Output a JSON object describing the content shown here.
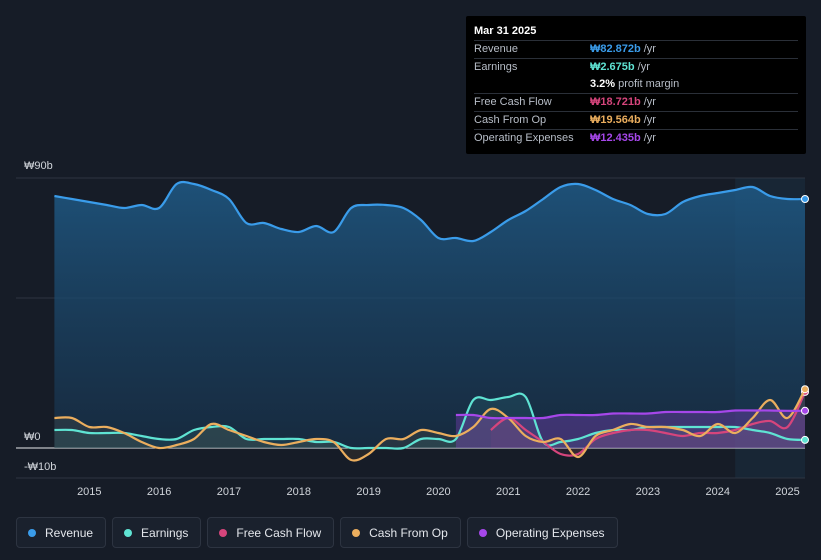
{
  "chart_data": {
    "type": "area",
    "title": "",
    "currency_prefix": "₩",
    "y_axis_labels": [
      "₩90b",
      "₩0",
      "-₩10b"
    ],
    "ylim": [
      -10,
      90
    ],
    "x_tick_labels": [
      "2015",
      "2016",
      "2017",
      "2018",
      "2019",
      "2020",
      "2021",
      "2022",
      "2023",
      "2024",
      "2025"
    ],
    "x_ticks": [
      2015,
      2016,
      2017,
      2018,
      2019,
      2020,
      2021,
      2022,
      2023,
      2024,
      2025
    ],
    "xlim": [
      2013.95,
      2025.25
    ],
    "highlight_start": 2024.25,
    "series": [
      {
        "name": "Revenue",
        "color": "#3a9cea",
        "fill": true,
        "x": [
          2014.5,
          2014.75,
          2015.0,
          2015.25,
          2015.5,
          2015.75,
          2016.0,
          2016.25,
          2016.5,
          2016.75,
          2017.0,
          2017.25,
          2017.5,
          2017.75,
          2018.0,
          2018.25,
          2018.5,
          2018.75,
          2019.0,
          2019.25,
          2019.5,
          2019.75,
          2020.0,
          2020.25,
          2020.5,
          2020.75,
          2021.0,
          2021.25,
          2021.5,
          2021.75,
          2022.0,
          2022.25,
          2022.5,
          2022.75,
          2023.0,
          2023.25,
          2023.5,
          2023.75,
          2024.0,
          2024.25,
          2024.5,
          2024.75,
          2025.0,
          2025.25
        ],
        "values": [
          84,
          83,
          82,
          81,
          80,
          81,
          80,
          88,
          88,
          86,
          83,
          75,
          75,
          73,
          72,
          74,
          72,
          80,
          81,
          81,
          80,
          76,
          70,
          70,
          69,
          72,
          76,
          79,
          83,
          87,
          88,
          86,
          83,
          81,
          78,
          78,
          82,
          84,
          85,
          86,
          87,
          84,
          83,
          83
        ]
      },
      {
        "name": "Earnings",
        "color": "#5fe3d3",
        "fill": false,
        "x": [
          2014.5,
          2014.75,
          2015.0,
          2015.25,
          2015.5,
          2015.75,
          2016.0,
          2016.25,
          2016.5,
          2016.75,
          2017.0,
          2017.25,
          2017.5,
          2017.75,
          2018.0,
          2018.25,
          2018.5,
          2018.75,
          2019.0,
          2019.25,
          2019.5,
          2019.75,
          2020.0,
          2020.25,
          2020.5,
          2020.75,
          2021.0,
          2021.25,
          2021.5,
          2021.75,
          2022.0,
          2022.25,
          2022.5,
          2022.75,
          2023.0,
          2023.25,
          2023.5,
          2023.75,
          2024.0,
          2024.25,
          2024.5,
          2024.75,
          2025.0,
          2025.25
        ],
        "values": [
          6,
          6,
          5,
          5,
          5,
          4,
          3,
          3,
          6,
          7,
          7,
          3,
          3,
          3,
          3,
          2,
          2,
          0,
          0,
          0,
          0,
          3,
          3,
          3,
          16,
          16,
          17,
          17,
          2,
          2,
          3,
          5,
          6,
          6,
          7,
          7,
          7,
          7,
          7,
          7,
          6,
          5,
          3,
          2.7
        ]
      },
      {
        "name": "Free Cash Flow",
        "color": "#d6457c",
        "fill": false,
        "x": [
          2020.75,
          2021.0,
          2021.25,
          2021.5,
          2021.75,
          2022.0,
          2022.25,
          2022.5,
          2022.75,
          2023.0,
          2023.25,
          2023.5,
          2023.75,
          2024.0,
          2024.25,
          2024.5,
          2024.75,
          2025.0,
          2025.25
        ],
        "values": [
          6,
          10,
          6,
          2,
          -2,
          -2,
          3,
          5,
          6,
          6,
          5,
          4,
          5,
          5,
          6,
          8,
          9,
          7,
          18.7
        ]
      },
      {
        "name": "Cash From Op",
        "color": "#ebae5e",
        "fill": false,
        "x": [
          2014.5,
          2014.75,
          2015.0,
          2015.25,
          2015.5,
          2015.75,
          2016.0,
          2016.25,
          2016.5,
          2016.75,
          2017.0,
          2017.25,
          2017.5,
          2017.75,
          2018.0,
          2018.25,
          2018.5,
          2018.75,
          2019.0,
          2019.25,
          2019.5,
          2019.75,
          2020.0,
          2020.25,
          2020.5,
          2020.75,
          2021.0,
          2021.25,
          2021.5,
          2021.75,
          2022.0,
          2022.25,
          2022.5,
          2022.75,
          2023.0,
          2023.25,
          2023.5,
          2023.75,
          2024.0,
          2024.25,
          2024.5,
          2024.75,
          2025.0,
          2025.25
        ],
        "values": [
          10,
          10,
          7,
          7,
          5,
          2,
          0,
          1,
          3,
          8,
          6,
          4,
          2,
          1,
          2,
          3,
          2,
          -4,
          -2,
          3,
          3,
          6,
          5,
          4,
          7,
          13,
          10,
          4,
          2,
          3,
          -3,
          4,
          6,
          8,
          7,
          7,
          6,
          4,
          8,
          5,
          10,
          16,
          10,
          19.6
        ]
      },
      {
        "name": "Operating Expenses",
        "color": "#a647ea",
        "fill": true,
        "x": [
          2020.25,
          2020.5,
          2020.75,
          2021.0,
          2021.25,
          2021.5,
          2021.75,
          2022.0,
          2022.25,
          2022.5,
          2022.75,
          2023.0,
          2023.25,
          2023.5,
          2023.75,
          2024.0,
          2024.25,
          2024.5,
          2024.75,
          2025.0,
          2025.25
        ],
        "values": [
          11,
          11,
          10,
          10,
          10,
          10,
          11,
          11,
          11,
          11.5,
          11.5,
          11.5,
          12,
          12,
          12,
          12,
          12.5,
          12.5,
          12.5,
          12.4,
          12.4
        ]
      }
    ]
  },
  "tooltip": {
    "date": "Mar 31 2025",
    "rows": [
      {
        "label": "Revenue",
        "value": "₩82.872b",
        "unit": "/yr",
        "color": "#3a9cea"
      },
      {
        "label": "Earnings",
        "value": "₩2.675b",
        "unit": "/yr",
        "color": "#5fe3d3"
      },
      {
        "label": "",
        "value": "3.2%",
        "unit": "profit margin",
        "color": "#ffffff"
      },
      {
        "label": "Free Cash Flow",
        "value": "₩18.721b",
        "unit": "/yr",
        "color": "#d6457c"
      },
      {
        "label": "Cash From Op",
        "value": "₩19.564b",
        "unit": "/yr",
        "color": "#ebae5e"
      },
      {
        "label": "Operating Expenses",
        "value": "₩12.435b",
        "unit": "/yr",
        "color": "#a647ea"
      }
    ]
  },
  "legend": [
    {
      "label": "Revenue",
      "color": "#3a9cea"
    },
    {
      "label": "Earnings",
      "color": "#5fe3d3"
    },
    {
      "label": "Free Cash Flow",
      "color": "#d6457c"
    },
    {
      "label": "Cash From Op",
      "color": "#ebae5e"
    },
    {
      "label": "Operating Expenses",
      "color": "#a647ea"
    }
  ]
}
